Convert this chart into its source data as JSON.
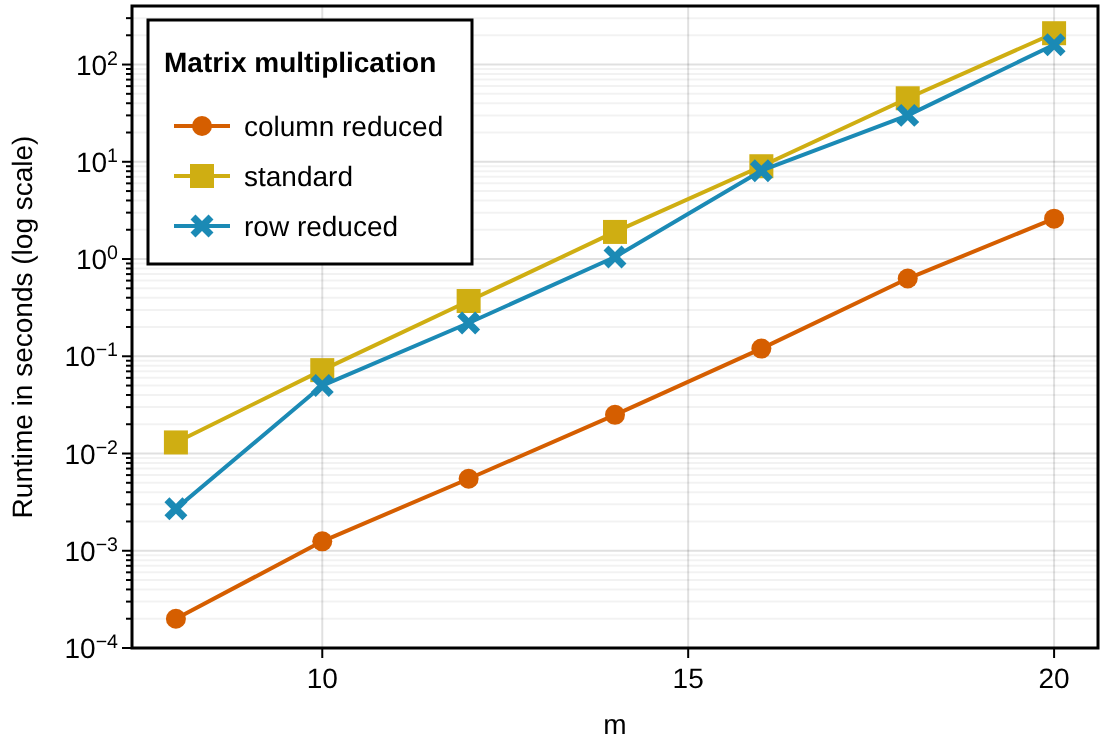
{
  "chart_data": {
    "type": "line",
    "xlabel": "m",
    "ylabel": "Runtime in seconds (log scale)",
    "legend_title": "Matrix multiplication",
    "legend": "top left",
    "grid": true,
    "log": "y",
    "x": [
      8,
      10,
      12,
      14,
      16,
      18,
      20
    ],
    "xlim": [
      7.4,
      20.6
    ],
    "xticks": [
      10,
      15,
      20
    ],
    "ylim": [
      0.0001,
      400
    ],
    "yticks": [
      {
        "value": 0.0001,
        "label": "10$^{−4}$"
      },
      {
        "value": 0.001,
        "label": "10$^{−3}$"
      },
      {
        "value": 0.01,
        "label": "10$^{−2}$"
      },
      {
        "value": 0.1,
        "label": "10$^{−1}$"
      },
      {
        "value": 1,
        "label": "10$^{0}$"
      },
      {
        "value": 10,
        "label": "10$^{1}$"
      },
      {
        "value": 100,
        "label": "10$^{2}$"
      }
    ],
    "series": [
      {
        "name": "column reduced",
        "color": "#d55e00",
        "marker": "circle",
        "values": [
          0.0002,
          0.00125,
          0.0055,
          0.025,
          0.12,
          0.63,
          2.6
        ]
      },
      {
        "name": "standard",
        "color": "#cfae12",
        "marker": "square",
        "values": [
          0.013,
          0.072,
          0.37,
          1.9,
          9,
          45,
          210
        ]
      },
      {
        "name": "row reduced",
        "color": "#1b8ab5",
        "marker": "cross",
        "values": [
          0.0027,
          0.05,
          0.22,
          1.05,
          8.1,
          30,
          160
        ]
      }
    ]
  }
}
